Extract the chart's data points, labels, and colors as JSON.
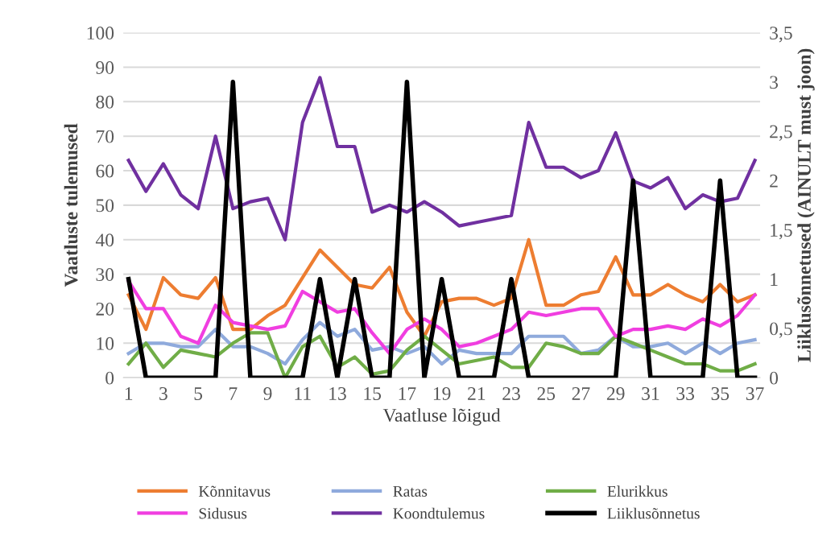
{
  "chart_data": {
    "type": "line",
    "xlabel": "Vaatluse lõigud",
    "ylabel": "Vaatluste tulemused",
    "y2label": "Liiklusõnnetused (AINULT must joon)",
    "categories": [
      "1",
      null,
      "3",
      null,
      "5",
      null,
      "7",
      null,
      "9",
      null,
      "11",
      null,
      "13",
      null,
      "15",
      null,
      "17",
      null,
      "19",
      null,
      "21",
      null,
      "23",
      null,
      "25",
      null,
      "27",
      null,
      "29",
      null,
      "31",
      null,
      "33",
      null,
      "35",
      null,
      "37"
    ],
    "series": [
      {
        "name": "Kõnnitavus",
        "color": "#ed7d31",
        "values": [
          24,
          14,
          29,
          24,
          23,
          29,
          14,
          14,
          18,
          21,
          29,
          37,
          32,
          27,
          26,
          32,
          19,
          12,
          22,
          23,
          23,
          21,
          23,
          40,
          21,
          21,
          24,
          25,
          35,
          24,
          24,
          27,
          24,
          22,
          27,
          22,
          24
        ]
      },
      {
        "name": "Ratas",
        "color": "#8faadc",
        "values": [
          7,
          10,
          10,
          9,
          9,
          14,
          9,
          9,
          7,
          4,
          11,
          16,
          12,
          14,
          8,
          9,
          7,
          9,
          4,
          8,
          7,
          7,
          7,
          12,
          12,
          12,
          7,
          8,
          12,
          9,
          9,
          10,
          7,
          10,
          7,
          10,
          11
        ]
      },
      {
        "name": "Elurikkus",
        "color": "#70ad47",
        "values": [
          4,
          10,
          3,
          8,
          7,
          6,
          10,
          13,
          13,
          0,
          9,
          12,
          3,
          6,
          1,
          2,
          8,
          12,
          8,
          4,
          5,
          6,
          3,
          3,
          10,
          9,
          7,
          7,
          12,
          10,
          8,
          6,
          4,
          4,
          2,
          2,
          4
        ]
      },
      {
        "name": "Sidusus",
        "color": "#f03ee0",
        "values": [
          28,
          20,
          20,
          12,
          10,
          21,
          16,
          15,
          14,
          15,
          25,
          22,
          19,
          20,
          13,
          7,
          14,
          17,
          14,
          9,
          10,
          12,
          14,
          19,
          18,
          19,
          20,
          20,
          12,
          14,
          14,
          15,
          14,
          17,
          15,
          18,
          24
        ]
      },
      {
        "name": "Koondtulemus",
        "color": "#7030a0",
        "values": [
          63,
          54,
          62,
          53,
          49,
          70,
          49,
          51,
          52,
          40,
          74,
          87,
          67,
          67,
          48,
          50,
          48,
          51,
          48,
          44,
          45,
          46,
          47,
          74,
          61,
          61,
          58,
          60,
          71,
          57,
          55,
          58,
          49,
          53,
          51,
          52,
          63
        ]
      },
      {
        "name": "Liiklusõnnetus",
        "color": "#000000",
        "axis": "y2",
        "values": [
          1,
          0,
          0,
          0,
          0,
          0,
          3,
          0,
          0,
          0,
          0,
          1,
          0,
          1,
          0,
          0,
          3,
          0,
          1,
          0,
          0,
          0,
          1,
          0,
          0,
          0,
          0,
          0,
          0,
          2,
          0,
          0,
          0,
          0,
          2,
          0,
          0
        ]
      }
    ],
    "ylim": [
      0,
      100
    ],
    "yticks": [
      0,
      10,
      20,
      30,
      40,
      50,
      60,
      70,
      80,
      90,
      100
    ],
    "y2lim": [
      0,
      3.5
    ],
    "y2ticks": [
      0,
      {
        "value": 0.5,
        "label": "0,5"
      },
      1,
      {
        "value": 1.5,
        "label": "1,5"
      },
      2,
      {
        "value": 2.5,
        "label": "2,5"
      },
      3,
      {
        "value": 3.5,
        "label": "3,5"
      }
    ],
    "grid": "y",
    "legend": "bottom",
    "marker": "none",
    "line_style": "solid"
  }
}
